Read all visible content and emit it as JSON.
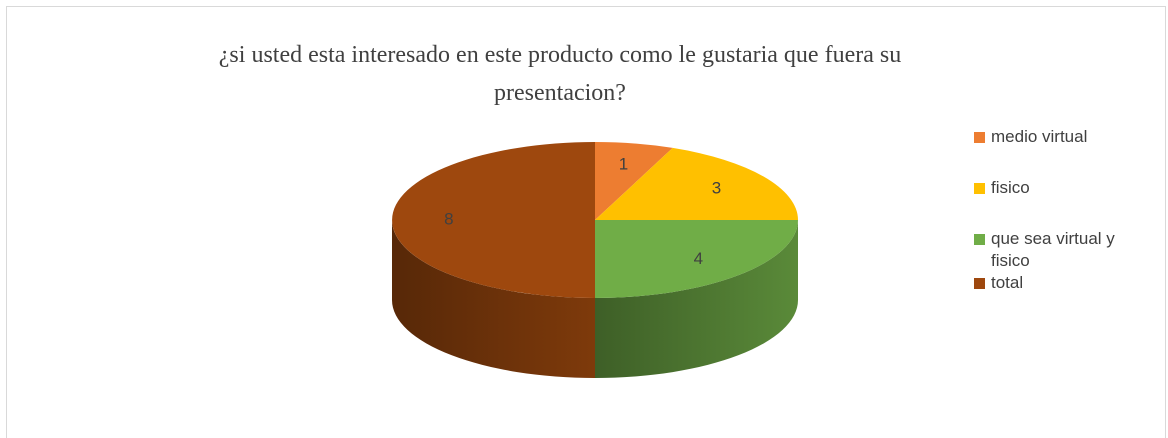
{
  "chart_data": {
    "type": "pie",
    "three_d": true,
    "title": "¿si usted esta interesado en este producto como le gustaria que fuera su presentacion?",
    "categories": [
      "medio virtual",
      "fisico",
      "que sea virtual y fisico",
      "total"
    ],
    "values": [
      1,
      3,
      4,
      8
    ],
    "colors": [
      "#ED7D31",
      "#FFC000",
      "#70AD47",
      "#9E480E"
    ],
    "legend": "right"
  }
}
